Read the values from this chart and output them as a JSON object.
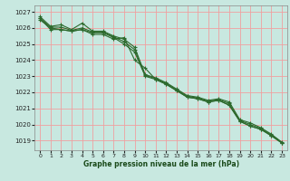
{
  "xlabel": "Graphe pression niveau de la mer (hPa)",
  "ylim": [
    1018.4,
    1027.4
  ],
  "xlim": [
    -0.5,
    23.5
  ],
  "yticks": [
    1019,
    1020,
    1021,
    1022,
    1023,
    1024,
    1025,
    1026,
    1027
  ],
  "xticks": [
    0,
    1,
    2,
    3,
    4,
    5,
    6,
    7,
    8,
    9,
    10,
    11,
    12,
    13,
    14,
    15,
    16,
    17,
    18,
    19,
    20,
    21,
    22,
    23
  ],
  "bg_color": "#c8e8e0",
  "line_color": "#2d6a2d",
  "grid_color": "#f0a0a0",
  "series": [
    [
      1026.7,
      1026.1,
      1026.2,
      1025.9,
      1026.3,
      1025.8,
      1025.8,
      1025.5,
      1025.3,
      1024.8,
      1023.1,
      1022.9,
      1022.6,
      1022.2,
      1021.8,
      1021.7,
      1021.5,
      1021.6,
      1021.4,
      1020.3,
      1020.1,
      1019.8,
      1019.4,
      1018.9
    ],
    [
      1026.5,
      1026.0,
      1025.9,
      1025.8,
      1025.9,
      1025.7,
      1025.7,
      1025.4,
      1025.0,
      1024.5,
      1023.0,
      1022.8,
      1022.5,
      1022.1,
      1021.7,
      1021.6,
      1021.4,
      1021.5,
      1021.2,
      1020.2,
      1019.9,
      1019.7,
      1019.3,
      1018.85
    ],
    [
      1026.6,
      1026.05,
      1026.05,
      1025.85,
      1026.0,
      1025.75,
      1025.75,
      1025.45,
      1025.15,
      1024.65,
      1023.05,
      1022.85,
      1022.55,
      1022.15,
      1021.75,
      1021.65,
      1021.45,
      1021.55,
      1021.3,
      1020.25,
      1020.0,
      1019.75,
      1019.35,
      1018.875
    ],
    [
      1026.6,
      1025.9,
      1025.9,
      1025.8,
      1025.9,
      1025.6,
      1025.6,
      1025.3,
      1025.4,
      1024.0,
      1023.5,
      1022.8,
      1022.5,
      1022.1,
      1021.7,
      1021.6,
      1021.4,
      1021.5,
      1021.2,
      1020.2,
      1019.9,
      1019.7,
      1019.3,
      1018.85
    ]
  ]
}
